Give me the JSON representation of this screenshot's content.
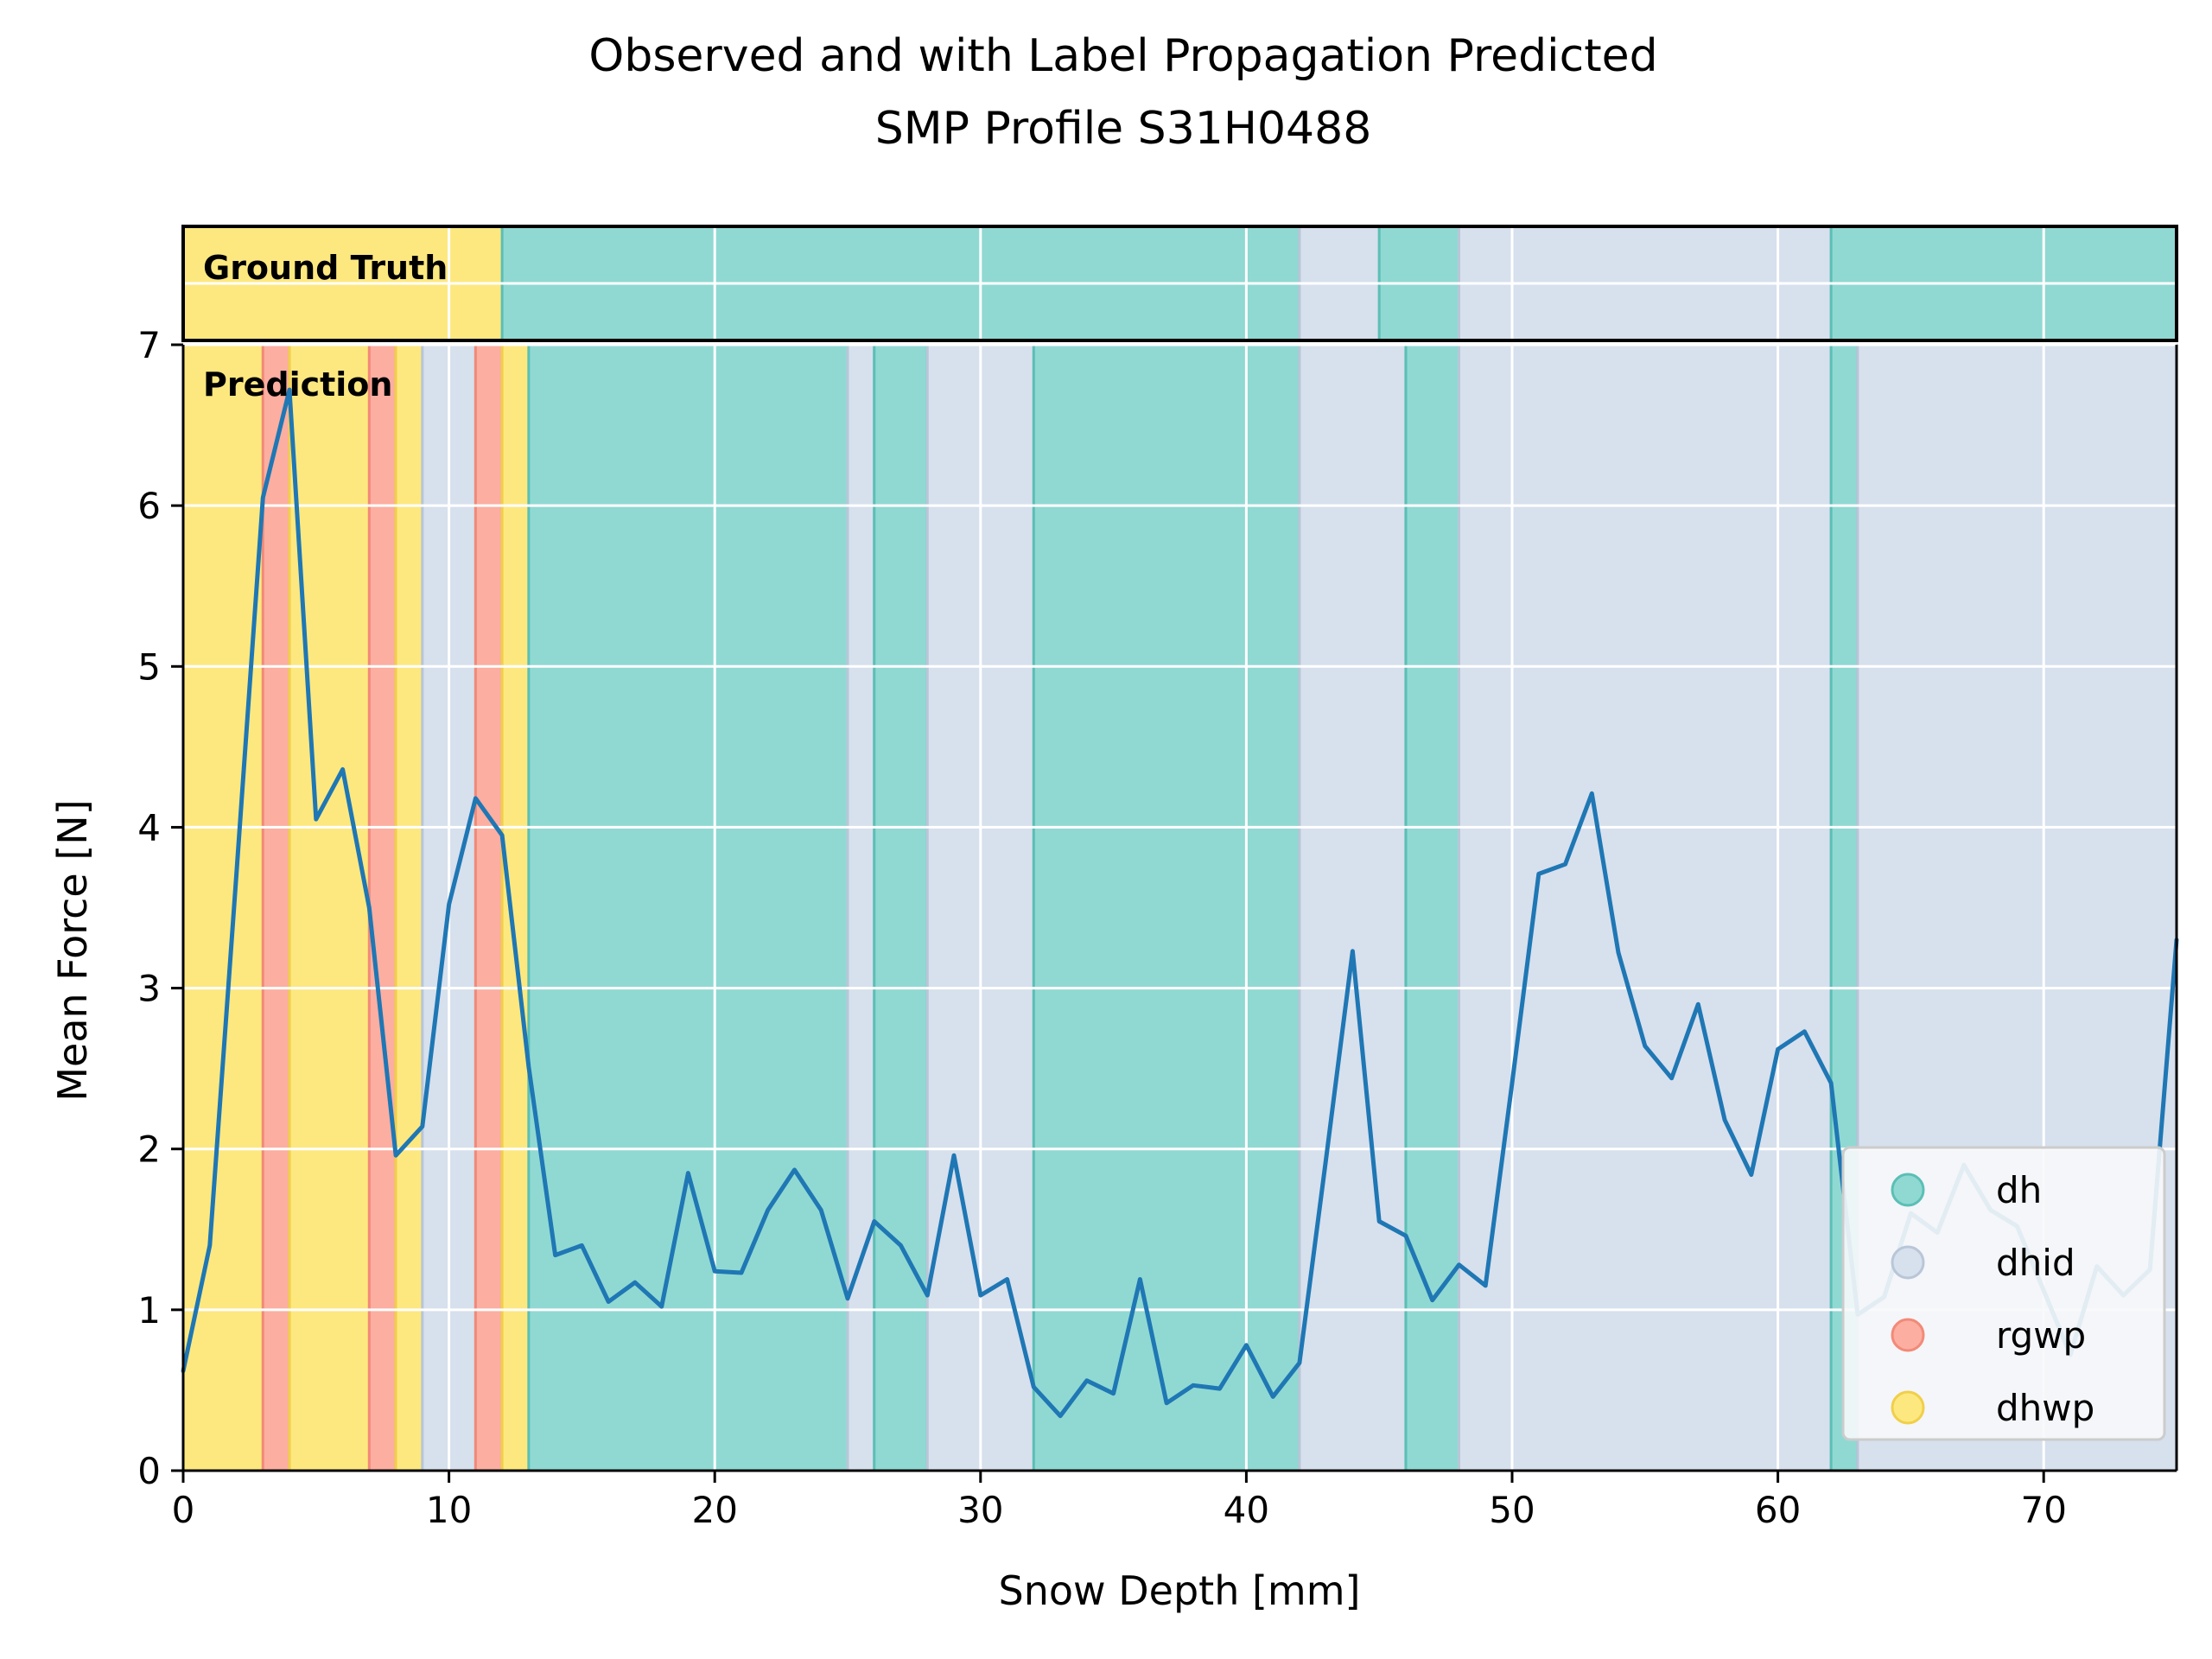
{
  "chart_data": {
    "type": "line",
    "title": "Observed and with Label Propagation Predicted\nSMP Profile S31H0488",
    "title_lines": [
      "Observed and with Label Propagation Predicted",
      "SMP Profile S31H0488"
    ],
    "xlabel": "Snow Depth [mm]",
    "ylabel": "Mean Force [N]",
    "xlim": [
      0,
      75
    ],
    "ylim": [
      0,
      7
    ],
    "xticks": [
      0,
      10,
      20,
      30,
      40,
      50,
      60,
      70
    ],
    "yticks": [
      0,
      1,
      2,
      3,
      4,
      5,
      6,
      7
    ],
    "grid": true,
    "legend_position": "lower-right",
    "band_labels": {
      "ground_truth": "Ground Truth",
      "prediction": "Prediction"
    },
    "colors": {
      "line": "#1f77b4",
      "dh": "#90d9d3",
      "dhid": "#d7e0ed",
      "rgwp": "#fcaea1",
      "dhwp": "#fde880"
    },
    "legend": [
      {
        "label": "dh",
        "color": "#90d9d3"
      },
      {
        "label": "dhid",
        "color": "#d7e0ed"
      },
      {
        "label": "rgwp",
        "color": "#fcaea1"
      },
      {
        "label": "dhwp",
        "color": "#fde880"
      }
    ],
    "ground_truth_segments": [
      {
        "start": 0,
        "end": 12,
        "label": "dhwp"
      },
      {
        "start": 12,
        "end": 42,
        "label": "dh"
      },
      {
        "start": 42,
        "end": 45,
        "label": "dhid"
      },
      {
        "start": 45,
        "end": 48,
        "label": "dh"
      },
      {
        "start": 48,
        "end": 62,
        "label": "dhid"
      },
      {
        "start": 62,
        "end": 75,
        "label": "dh"
      }
    ],
    "prediction_segments": [
      {
        "start": 0,
        "end": 3,
        "label": "dhwp"
      },
      {
        "start": 3,
        "end": 4,
        "label": "rgwp"
      },
      {
        "start": 4,
        "end": 7,
        "label": "dhwp"
      },
      {
        "start": 7,
        "end": 8,
        "label": "rgwp"
      },
      {
        "start": 8,
        "end": 9,
        "label": "dhwp"
      },
      {
        "start": 9,
        "end": 11,
        "label": "dhid"
      },
      {
        "start": 11,
        "end": 12,
        "label": "rgwp"
      },
      {
        "start": 12,
        "end": 13,
        "label": "dhwp"
      },
      {
        "start": 13,
        "end": 25,
        "label": "dh"
      },
      {
        "start": 25,
        "end": 26,
        "label": "dhid"
      },
      {
        "start": 26,
        "end": 28,
        "label": "dh"
      },
      {
        "start": 28,
        "end": 32,
        "label": "dhid"
      },
      {
        "start": 32,
        "end": 42,
        "label": "dh"
      },
      {
        "start": 42,
        "end": 46,
        "label": "dhid"
      },
      {
        "start": 46,
        "end": 48,
        "label": "dh"
      },
      {
        "start": 48,
        "end": 62,
        "label": "dhid"
      },
      {
        "start": 62,
        "end": 63,
        "label": "dh"
      },
      {
        "start": 63,
        "end": 75,
        "label": "dhid"
      }
    ],
    "series": [
      {
        "x": [
          0,
          1,
          2,
          3,
          4,
          5,
          6,
          7,
          8,
          9,
          10,
          11,
          12,
          13,
          14,
          15,
          16,
          17,
          18,
          19,
          20,
          21,
          22,
          23,
          24,
          25,
          26,
          27,
          28,
          29,
          30,
          31,
          32,
          33,
          34,
          35,
          36,
          37,
          38,
          39,
          40,
          41,
          42,
          43,
          44,
          45,
          46,
          47,
          48,
          49,
          50,
          51,
          52,
          53,
          54,
          55,
          56,
          57,
          58,
          59,
          60,
          61,
          62,
          63,
          64,
          65,
          66,
          67,
          68,
          69,
          70,
          71,
          72,
          73,
          74,
          75
        ],
        "y": [
          0.62,
          1.4,
          3.7,
          6.05,
          6.72,
          4.05,
          4.36,
          3.5,
          1.96,
          2.14,
          3.52,
          4.18,
          3.95,
          2.51,
          1.34,
          1.4,
          1.05,
          1.17,
          1.02,
          1.85,
          1.24,
          1.23,
          1.62,
          1.87,
          1.62,
          1.07,
          1.55,
          1.4,
          1.09,
          1.96,
          1.09,
          1.19,
          0.52,
          0.34,
          0.56,
          0.48,
          1.19,
          0.42,
          0.53,
          0.51,
          0.78,
          0.46,
          0.67,
          1.94,
          3.23,
          1.55,
          1.46,
          1.06,
          1.28,
          1.15,
          2.41,
          3.71,
          3.77,
          4.21,
          3.22,
          2.64,
          2.44,
          2.9,
          2.18,
          1.84,
          2.62,
          2.73,
          2.41,
          0.97,
          1.08,
          1.6,
          1.48,
          1.9,
          1.62,
          1.52,
          1.12,
          0.72,
          1.27,
          1.09,
          1.25,
          3.3
        ]
      }
    ]
  }
}
